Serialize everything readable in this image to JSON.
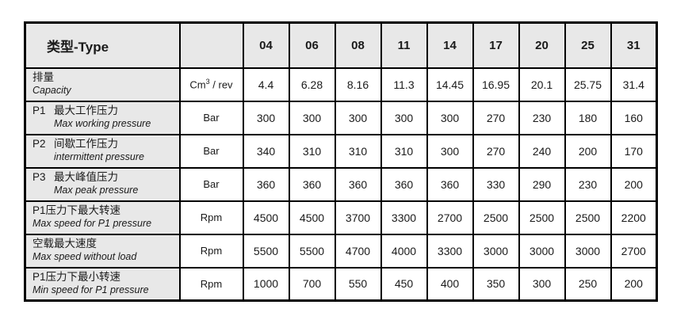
{
  "table": {
    "header": {
      "type_label": "类型-Type",
      "unit_label": "",
      "columns": [
        "04",
        "06",
        "08",
        "11",
        "14",
        "17",
        "20",
        "25",
        "31"
      ]
    },
    "rows": [
      {
        "prefix": "",
        "zh": "排量",
        "en": "Capacity",
        "unit": "Cm³ / rev",
        "values": [
          "4.4",
          "6.28",
          "8.16",
          "11.3",
          "14.45",
          "16.95",
          "20.1",
          "25.75",
          "31.4"
        ]
      },
      {
        "prefix": "P1",
        "zh": "最大工作压力",
        "en": "Max working pressure",
        "unit": "Bar",
        "values": [
          "300",
          "300",
          "300",
          "300",
          "300",
          "270",
          "230",
          "180",
          "160"
        ]
      },
      {
        "prefix": "P2",
        "zh": "间歇工作压力",
        "en": "intermittent pressure",
        "unit": "Bar",
        "values": [
          "340",
          "310",
          "310",
          "310",
          "300",
          "270",
          "240",
          "200",
          "170"
        ]
      },
      {
        "prefix": "P3",
        "zh": "最大峰值压力",
        "en": "Max peak pressure",
        "unit": "Bar",
        "values": [
          "360",
          "360",
          "360",
          "360",
          "360",
          "330",
          "290",
          "230",
          "200"
        ]
      },
      {
        "prefix": "",
        "zh": "P1压力下最大转速",
        "en": "Max speed for P1 pressure",
        "unit": "Rpm",
        "values": [
          "4500",
          "4500",
          "3700",
          "3300",
          "2700",
          "2500",
          "2500",
          "2500",
          "2200"
        ]
      },
      {
        "prefix": "",
        "zh": "空载最大速度",
        "en": "Max speed without load",
        "unit": "Rpm",
        "values": [
          "5500",
          "5500",
          "4700",
          "4000",
          "3300",
          "3000",
          "3000",
          "3000",
          "2700"
        ]
      },
      {
        "prefix": "",
        "zh": "P1压力下最小转速",
        "en": "Min speed for P1 pressure",
        "unit": "Rpm",
        "values": [
          "1000",
          "700",
          "550",
          "450",
          "400",
          "350",
          "300",
          "250",
          "200"
        ]
      }
    ],
    "layout": {
      "label_col_width": 195,
      "unit_col_width": 80,
      "value_col_width": 58
    },
    "colors": {
      "header_bg": "#e8e8e8",
      "label_bg": "#e8e8e8",
      "border": "#000000",
      "text": "#1a1a1a"
    }
  }
}
